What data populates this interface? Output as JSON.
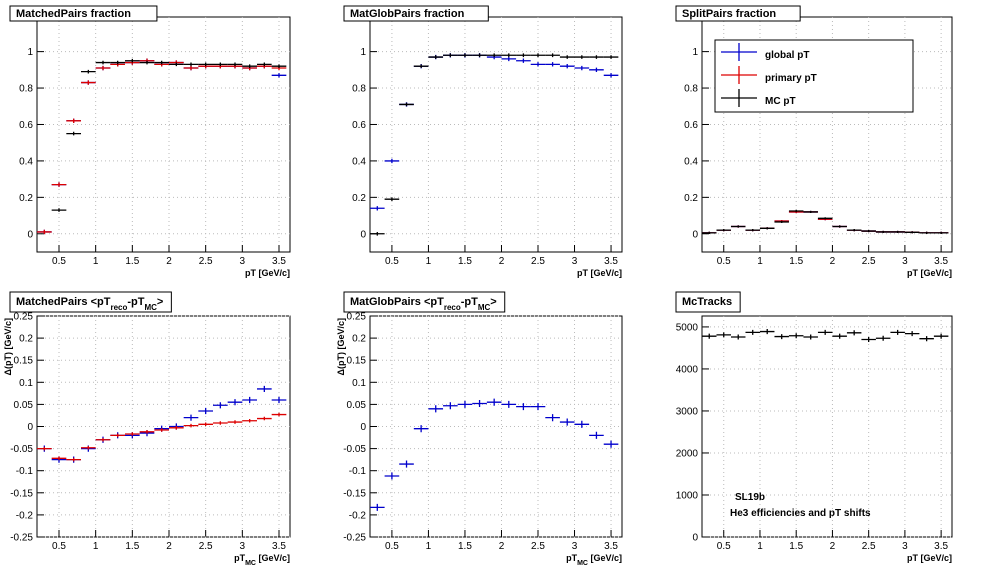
{
  "chart_data": [
    {
      "type": "errorbar",
      "title": [
        "MatchedPairs fraction"
      ],
      "xlabel": [
        "pT [GeV/c]"
      ],
      "x": [
        0.3,
        0.5,
        0.7,
        0.9,
        1.1,
        1.3,
        1.5,
        1.7,
        1.9,
        2.1,
        2.3,
        2.5,
        2.7,
        2.9,
        3.1,
        3.3,
        3.5
      ],
      "xerr": 0.1,
      "xlim": [
        0.2,
        3.65
      ],
      "xticks": [
        0.5,
        1,
        1.5,
        2,
        2.5,
        3,
        3.5
      ],
      "ylim": [
        -0.1,
        1.19
      ],
      "yticks": [
        0,
        0.2,
        0.4,
        0.6,
        0.8,
        1
      ],
      "grid": true,
      "series": [
        {
          "name": "global pT",
          "color": "#0000cc",
          "yerr": 0.012,
          "values": [
            0.01,
            0.27,
            0.62,
            0.83,
            0.91,
            0.93,
            0.94,
            0.95,
            0.93,
            0.94,
            0.91,
            0.92,
            0.92,
            0.92,
            0.91,
            0.92,
            0.87
          ]
        },
        {
          "name": "primary pT",
          "color": "#dd0000",
          "yerr": 0.012,
          "values": [
            0.01,
            0.27,
            0.62,
            0.83,
            0.91,
            0.93,
            0.94,
            0.95,
            0.93,
            0.94,
            0.91,
            0.92,
            0.92,
            0.92,
            0.91,
            0.92,
            0.91
          ]
        },
        {
          "name": "MC pT",
          "color": "#000000",
          "yerr": 0.01,
          "values": [
            null,
            0.13,
            0.55,
            0.89,
            0.94,
            0.94,
            0.95,
            0.94,
            0.94,
            0.93,
            0.93,
            0.93,
            0.93,
            0.93,
            0.92,
            0.93,
            0.92
          ]
        }
      ]
    },
    {
      "type": "errorbar",
      "title": [
        "MatGlobPairs fraction"
      ],
      "xlabel": [
        "pT [GeV/c]"
      ],
      "x": [
        0.3,
        0.5,
        0.7,
        0.9,
        1.1,
        1.3,
        1.5,
        1.7,
        1.9,
        2.1,
        2.3,
        2.5,
        2.7,
        2.9,
        3.1,
        3.3,
        3.5
      ],
      "xerr": 0.1,
      "xlim": [
        0.2,
        3.65
      ],
      "xticks": [
        0.5,
        1,
        1.5,
        2,
        2.5,
        3,
        3.5
      ],
      "ylim": [
        -0.1,
        1.19
      ],
      "yticks": [
        0,
        0.2,
        0.4,
        0.6,
        0.8,
        1
      ],
      "grid": true,
      "series": [
        {
          "name": "global pT",
          "color": "#0000cc",
          "yerr": 0.012,
          "values": [
            0.14,
            0.4,
            0.71,
            0.92,
            0.97,
            0.98,
            0.98,
            0.98,
            0.97,
            0.96,
            0.95,
            0.93,
            0.93,
            0.92,
            0.91,
            0.9,
            0.87
          ]
        },
        {
          "name": "MC pT",
          "color": "#000000",
          "yerr": 0.01,
          "values": [
            0,
            0.19,
            0.71,
            0.92,
            0.97,
            0.98,
            0.98,
            0.98,
            0.98,
            0.98,
            0.98,
            0.98,
            0.98,
            0.97,
            0.97,
            0.97,
            0.97
          ]
        }
      ]
    },
    {
      "type": "errorbar",
      "title": [
        "SplitPairs fraction"
      ],
      "xlabel": [
        "pT [GeV/c]"
      ],
      "legend": "upper right",
      "x": [
        0.3,
        0.5,
        0.7,
        0.9,
        1.1,
        1.3,
        1.5,
        1.7,
        1.9,
        2.1,
        2.3,
        2.5,
        2.7,
        2.9,
        3.1,
        3.3,
        3.5
      ],
      "xerr": 0.1,
      "xlim": [
        0.2,
        3.65
      ],
      "xticks": [
        0.5,
        1,
        1.5,
        2,
        2.5,
        3,
        3.5
      ],
      "ylim": [
        -0.1,
        1.19
      ],
      "yticks": [
        0,
        0.2,
        0.4,
        0.6,
        0.8,
        1
      ],
      "grid": true,
      "series": [
        {
          "name": "global pT",
          "color": "#0000cc",
          "yerr": 0.006,
          "values": [
            0.005,
            0.02,
            0.04,
            0.02,
            0.03,
            0.07,
            0.12,
            0.12,
            0.08,
            0.04,
            0.02,
            0.015,
            0.01,
            0.01,
            0.008,
            0.005,
            0.005
          ]
        },
        {
          "name": "primary pT",
          "color": "#dd0000",
          "yerr": 0.006,
          "values": [
            0.005,
            0.02,
            0.04,
            0.02,
            0.03,
            0.07,
            0.12,
            0.12,
            0.08,
            0.04,
            0.02,
            0.015,
            0.01,
            0.01,
            0.008,
            0.005,
            0.005
          ]
        },
        {
          "name": "MC pT",
          "color": "#000000",
          "yerr": 0.006,
          "values": [
            0.005,
            0.02,
            0.04,
            0.02,
            0.03,
            0.065,
            0.125,
            0.12,
            0.085,
            0.04,
            0.02,
            0.015,
            0.01,
            0.01,
            0.008,
            0.005,
            0.005
          ]
        }
      ]
    },
    {
      "type": "errorbar",
      "title": [
        "MatchedPairs <pT",
        "reco",
        "-pT",
        "MC",
        ">"
      ],
      "xlabel": [
        "pT",
        "MC",
        " [GeV/c]"
      ],
      "ylabel": "Δ(pT) [GeV/c]",
      "x": [
        0.3,
        0.5,
        0.7,
        0.9,
        1.1,
        1.3,
        1.5,
        1.7,
        1.9,
        2.1,
        2.3,
        2.5,
        2.7,
        2.9,
        3.1,
        3.3,
        3.5
      ],
      "xerr": 0.1,
      "xlim": [
        0.2,
        3.65
      ],
      "xticks": [
        0.5,
        1,
        1.5,
        2,
        2.5,
        3,
        3.5
      ],
      "ylim": [
        -0.25,
        0.25
      ],
      "yticks": [
        -0.25,
        -0.2,
        -0.15,
        -0.1,
        -0.05,
        0,
        0.05,
        0.1,
        0.15,
        0.2,
        0.25
      ],
      "grid": true,
      "series": [
        {
          "name": "global pT",
          "color": "#0000cc",
          "yerr": 0.007,
          "values": [
            -0.05,
            -0.075,
            -0.075,
            -0.05,
            -0.03,
            -0.02,
            -0.02,
            -0.015,
            -0.005,
            0,
            0.02,
            0.035,
            0.048,
            0.055,
            0.06,
            0.085,
            0.06
          ]
        },
        {
          "name": "primary pT",
          "color": "#dd0000",
          "yerr": 0.004,
          "values": [
            -0.05,
            -0.072,
            -0.075,
            -0.048,
            -0.03,
            -0.02,
            -0.017,
            -0.012,
            -0.008,
            -0.003,
            0.002,
            0.005,
            0.008,
            0.01,
            0.013,
            0.018,
            0.027
          ]
        }
      ]
    },
    {
      "type": "errorbar",
      "title": [
        "MatGlobPairs <pT",
        "reco",
        "-pT",
        "MC",
        ">"
      ],
      "xlabel": [
        "pT",
        "MC",
        " [GeV/c]"
      ],
      "ylabel": "Δ(pT) [GeV/c]",
      "x": [
        0.3,
        0.5,
        0.7,
        0.9,
        1.1,
        1.3,
        1.5,
        1.7,
        1.9,
        2.1,
        2.3,
        2.5,
        2.7,
        2.9,
        3.1,
        3.3,
        3.5
      ],
      "xerr": 0.1,
      "xlim": [
        0.2,
        3.65
      ],
      "xticks": [
        0.5,
        1,
        1.5,
        2,
        2.5,
        3,
        3.5
      ],
      "ylim": [
        -0.25,
        0.25
      ],
      "yticks": [
        -0.25,
        -0.2,
        -0.15,
        -0.1,
        -0.05,
        0,
        0.05,
        0.1,
        0.15,
        0.2,
        0.25
      ],
      "grid": true,
      "series": [
        {
          "name": "global pT",
          "color": "#0000cc",
          "yerr": 0.008,
          "values": [
            -0.183,
            -0.112,
            -0.085,
            -0.005,
            0.04,
            0.047,
            0.05,
            0.052,
            0.055,
            0.05,
            0.045,
            0.045,
            0.02,
            0.01,
            0.005,
            -0.02,
            -0.04
          ]
        }
      ]
    },
    {
      "type": "errorbar",
      "title": [
        "McTracks"
      ],
      "xlabel": [
        "pT [GeV/c]"
      ],
      "annotations": [
        "SL19b",
        "He3 efficiencies and pT shifts"
      ],
      "x": [
        0.3,
        0.5,
        0.7,
        0.9,
        1.1,
        1.3,
        1.5,
        1.7,
        1.9,
        2.1,
        2.3,
        2.5,
        2.7,
        2.9,
        3.1,
        3.3,
        3.5
      ],
      "xerr": 0.1,
      "xlim": [
        0.2,
        3.65
      ],
      "xticks": [
        0.5,
        1,
        1.5,
        2,
        2.5,
        3,
        3.5
      ],
      "ylim": [
        0,
        5260
      ],
      "yticks": [
        0,
        1000,
        2000,
        3000,
        4000,
        5000
      ],
      "grid": true,
      "series": [
        {
          "name": "MC pT",
          "color": "#000000",
          "yerr": 60,
          "values": [
            4780,
            4810,
            4760,
            4870,
            4890,
            4770,
            4790,
            4760,
            4870,
            4780,
            4860,
            4700,
            4730,
            4870,
            4840,
            4720,
            4780
          ]
        }
      ]
    }
  ]
}
